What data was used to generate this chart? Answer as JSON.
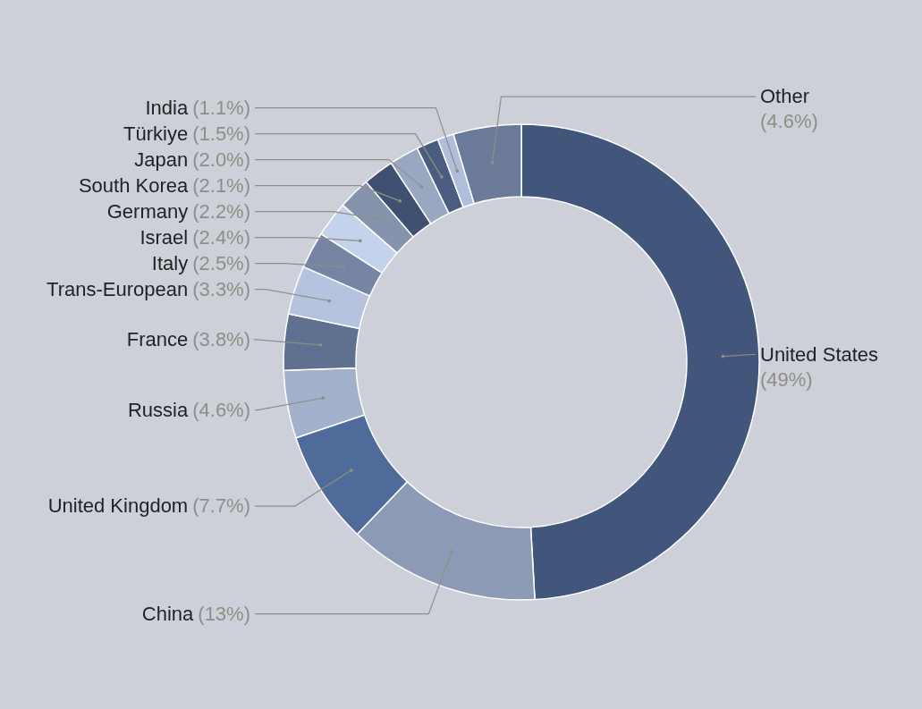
{
  "chart_data": {
    "type": "donut",
    "categories": [
      "United States",
      "China",
      "United Kingdom",
      "Russia",
      "France",
      "Trans-European",
      "Italy",
      "Israel",
      "Germany",
      "South Korea",
      "Japan",
      "Türkiye",
      "India",
      "Other"
    ],
    "values": [
      49,
      13,
      7.7,
      4.6,
      3.8,
      3.3,
      2.5,
      2.4,
      2.2,
      2.1,
      2.0,
      1.5,
      1.1,
      4.6
    ],
    "value_labels": [
      "(49%)",
      "(13%)",
      "(7.7%)",
      "(4.6%)",
      "(3.8%)",
      "(3.3%)",
      "(2.5%)",
      "(2.4%)",
      "(2.2%)",
      "(2.1%)",
      "(2.0%)",
      "(1.5%)",
      "(1.1%)",
      "(4.6%)"
    ],
    "colors": [
      "#42557a",
      "#8c9ab5",
      "#4f6b9a",
      "#a3b0cb",
      "#5f7090",
      "#b5c3de",
      "#7585a3",
      "#c5d2ec",
      "#8593ac",
      "#3f5070",
      "#9aa7c0",
      "#4a5c80",
      "#b0bedb",
      "#6b7a98"
    ]
  }
}
